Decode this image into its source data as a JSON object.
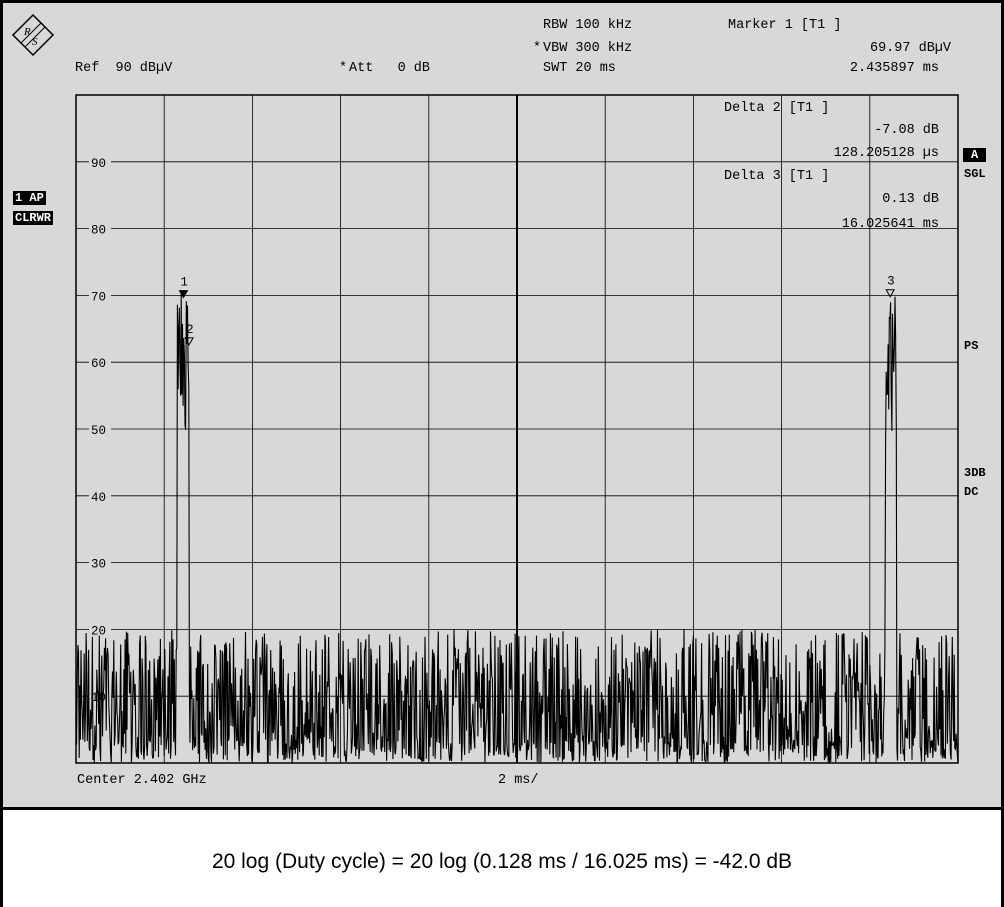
{
  "header": {
    "rbw": "RBW 100 kHz",
    "vbw_star": "*",
    "vbw": "VBW 300 kHz",
    "swt": "SWT 20 ms",
    "ref": "Ref  90 dBµV",
    "att_star": "*",
    "att": "Att   0 dB"
  },
  "marker_box": {
    "m1_title": "Marker 1 [T1 ]",
    "m1_level": "69.97 dBµV",
    "m1_time": "2.435897 ms",
    "d2_title": "Delta 2 [T1 ]",
    "d2_level": "-7.08 dB",
    "d2_time": "128.205128 µs",
    "d3_title": "Delta 3 [T1 ]",
    "d3_level": "0.13 dB",
    "d3_time": "16.025641 ms"
  },
  "side_labels": {
    "ap": "1 AP",
    "clrwr": "CLRWR",
    "a": "A",
    "sgl": "SGL",
    "ps": "PS",
    "db3": "3DB",
    "dc": "DC"
  },
  "footer": {
    "center": "Center 2.402 GHz",
    "span": "2 ms/"
  },
  "caption": "20 log (Duty cycle) = 20 log (0.128 ms / 16.025 ms) = -42.0 dB",
  "chart_data": {
    "type": "line",
    "xlim": [
      0,
      20
    ],
    "ylim": [
      0,
      100
    ],
    "yunit": "dBµV",
    "xunit": "ms",
    "y_tick_labels": [
      "90",
      "80",
      "70",
      "60",
      "50",
      "40",
      "30",
      "20",
      "10"
    ],
    "grid": true,
    "noise_floor": [
      0,
      20
    ],
    "pulses": [
      {
        "start": 2.3,
        "end": 2.56,
        "peak": 70.5
      },
      {
        "start": 18.35,
        "end": 18.6,
        "peak": 70.1
      }
    ],
    "markers": [
      {
        "label": "1",
        "x": 2.436,
        "y": 69.97,
        "symbol": "filled-triangle"
      },
      {
        "label": "2",
        "x": 2.564,
        "y": 62.9,
        "symbol": "open-triangle"
      },
      {
        "label": "3",
        "x": 18.462,
        "y": 70.1,
        "symbol": "open-triangle"
      }
    ]
  }
}
